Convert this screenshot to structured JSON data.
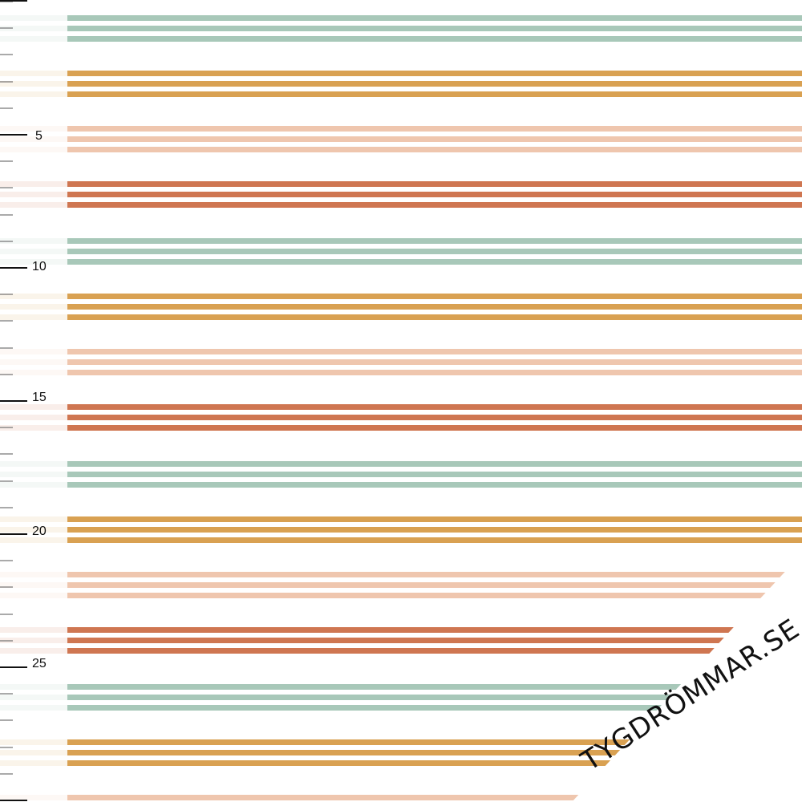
{
  "ruler": {
    "labels": [
      "5",
      "10",
      "15",
      "20",
      "25"
    ]
  },
  "stripe_colors": [
    "#a8c8b9",
    "#d9a152",
    "#efc6ae",
    "#cf7651"
  ],
  "watermark": {
    "text": "TYGDRÖMMAR.SE",
    "color": "#111111"
  }
}
